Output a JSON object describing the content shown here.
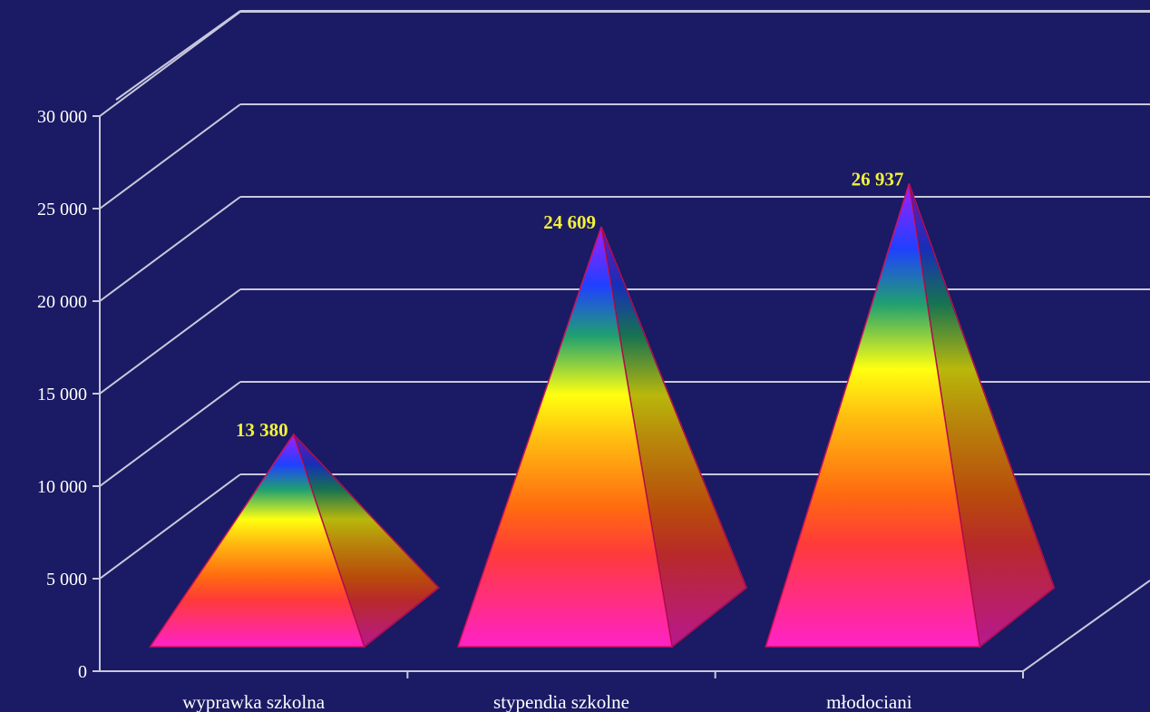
{
  "chart_data": {
    "type": "bar",
    "shape": "3d-pyramid",
    "categories": [
      "wyprawka szkolna",
      "stypendia szkolne",
      "młodociani"
    ],
    "values": [
      13380,
      24609,
      26937
    ],
    "data_labels": [
      "13 380",
      "24 609",
      "26 937"
    ],
    "y_ticks": [
      "0",
      "5 000",
      "10 000",
      "15 000",
      "20 000",
      "25 000",
      "30 000"
    ],
    "ylim": [
      0,
      30000
    ],
    "grid": true,
    "legend": "none",
    "title": "",
    "xlabel": "",
    "ylabel": ""
  },
  "colors": {
    "background": "#1b1a64",
    "gridline": "#c8c8dc",
    "axis_text": "#ffffff",
    "value_label": "#f2f23a",
    "gradient": [
      "#ff22c8",
      "#ff3a3a",
      "#ff6a10",
      "#ffc010",
      "#ffff10",
      "#20a070",
      "#2040ff",
      "#a020ff"
    ]
  }
}
